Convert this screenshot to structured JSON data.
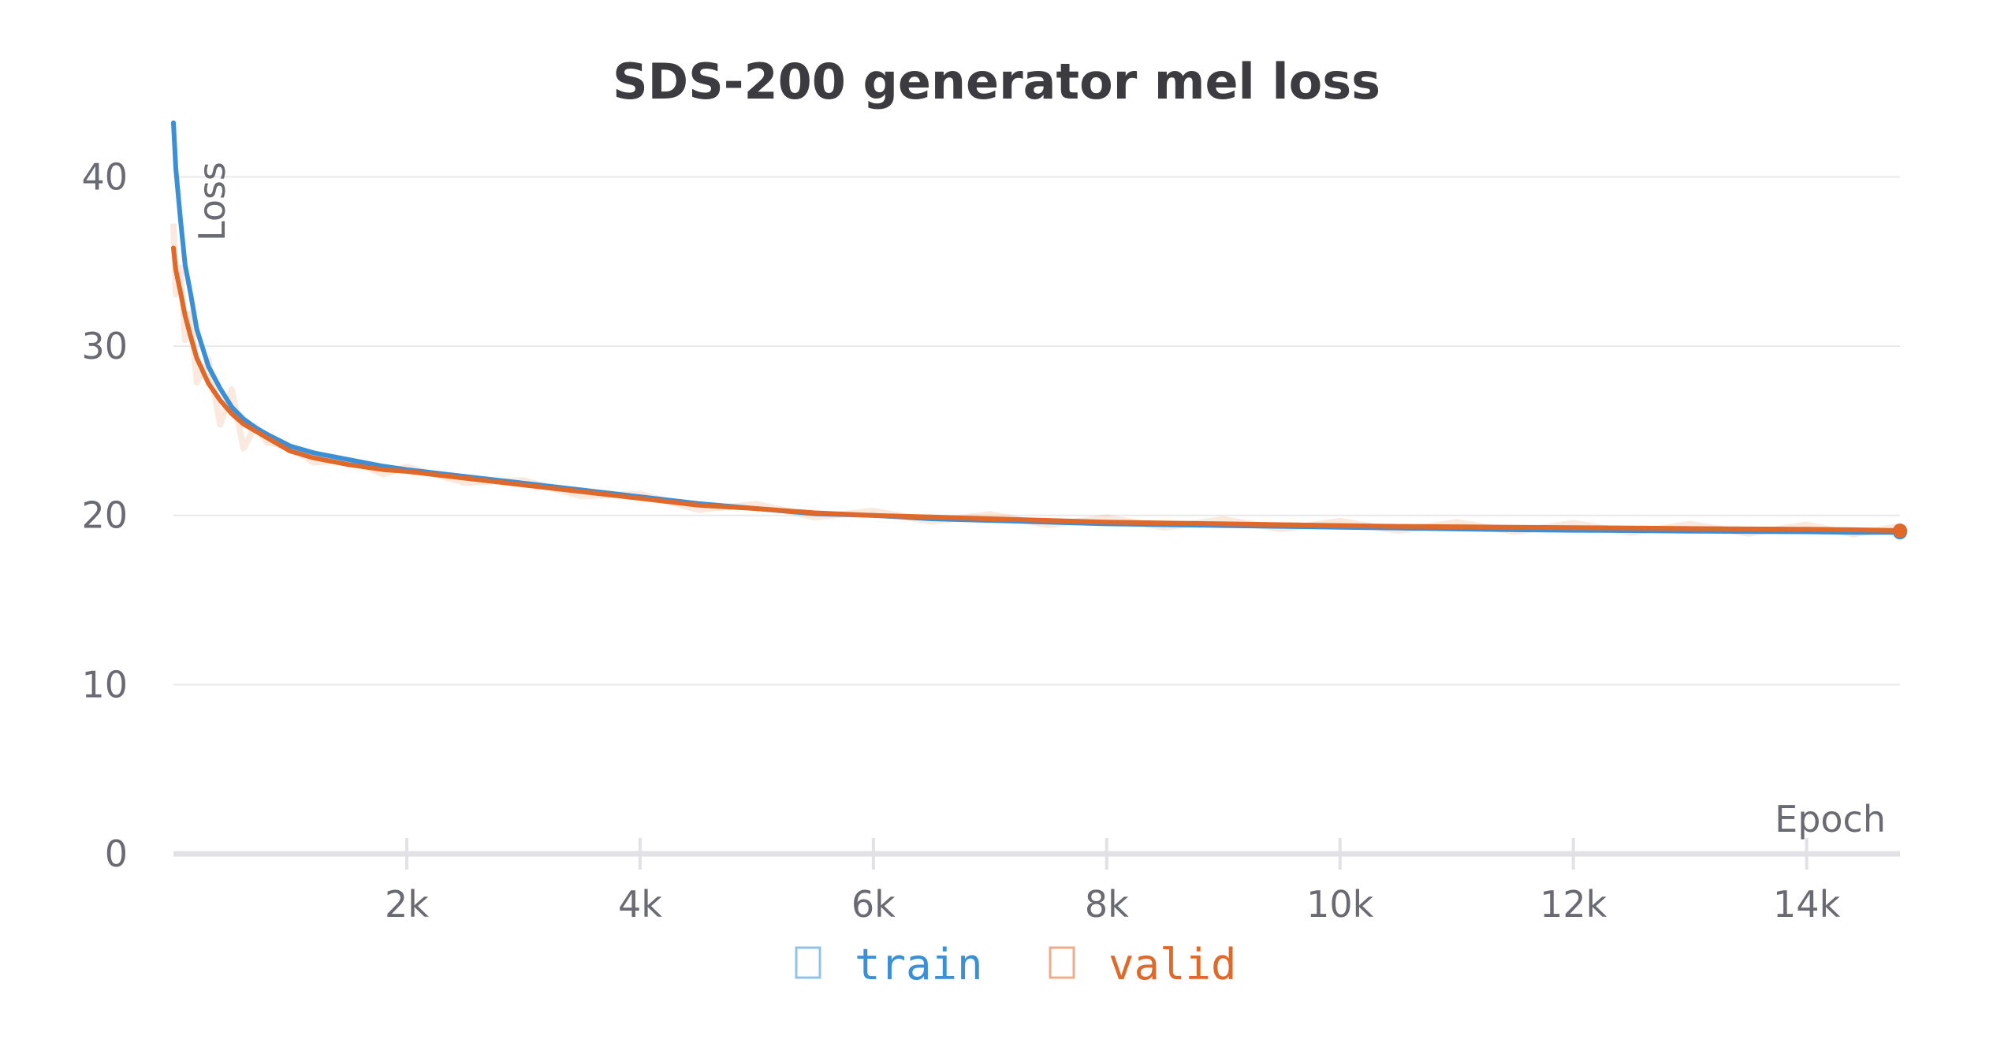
{
  "chart_data": {
    "type": "line",
    "title": "SDS-200 generator mel loss",
    "xlabel": "Epoch",
    "ylabel": "Loss",
    "xlim": [
      0,
      14800
    ],
    "ylim": [
      0,
      43
    ],
    "x_ticks": [
      2000,
      4000,
      6000,
      8000,
      10000,
      12000,
      14000
    ],
    "x_tick_labels": [
      "2k",
      "4k",
      "6k",
      "8k",
      "10k",
      "12k",
      "14k"
    ],
    "y_ticks": [
      0,
      10,
      20,
      30,
      40
    ],
    "y_tick_labels": [
      "0",
      "10",
      "20",
      "30",
      "40"
    ],
    "grid": "horizontal",
    "legend_position": "bottom",
    "series": [
      {
        "name": "train",
        "color": "#3b8fd6",
        "x": [
          0,
          20,
          60,
          100,
          150,
          200,
          300,
          400,
          500,
          600,
          700,
          800,
          1000,
          1200,
          1500,
          1800,
          2000,
          2500,
          3000,
          3500,
          4000,
          4500,
          5000,
          5500,
          6000,
          6500,
          7000,
          7500,
          8000,
          8500,
          9000,
          9500,
          10000,
          10500,
          11000,
          11500,
          12000,
          12500,
          13000,
          13500,
          14000,
          14400,
          14800
        ],
        "y": [
          43.2,
          40.5,
          37.5,
          34.8,
          33.0,
          31.0,
          28.8,
          27.5,
          26.4,
          25.7,
          25.2,
          24.8,
          24.1,
          23.7,
          23.3,
          22.9,
          22.7,
          22.3,
          21.9,
          21.5,
          21.1,
          20.7,
          20.4,
          20.1,
          20.0,
          19.8,
          19.7,
          19.6,
          19.5,
          19.45,
          19.4,
          19.35,
          19.3,
          19.25,
          19.2,
          19.15,
          19.12,
          19.1,
          19.07,
          19.05,
          19.03,
          19.0,
          19.0
        ]
      },
      {
        "name": "valid",
        "color": "#e0692a",
        "x": [
          0,
          20,
          60,
          100,
          150,
          200,
          300,
          400,
          500,
          600,
          700,
          800,
          1000,
          1200,
          1500,
          1800,
          2000,
          2500,
          3000,
          3500,
          4000,
          4500,
          5000,
          5500,
          6000,
          6500,
          7000,
          7500,
          8000,
          8500,
          9000,
          9500,
          10000,
          10500,
          11000,
          11500,
          12000,
          12500,
          13000,
          13500,
          14000,
          14400,
          14800
        ],
        "y": [
          35.8,
          34.5,
          33.2,
          31.8,
          30.5,
          29.3,
          27.8,
          26.8,
          26.0,
          25.4,
          25.0,
          24.6,
          23.8,
          23.4,
          23.0,
          22.7,
          22.6,
          22.2,
          21.8,
          21.4,
          21.0,
          20.6,
          20.4,
          20.15,
          20.0,
          19.9,
          19.8,
          19.7,
          19.6,
          19.55,
          19.5,
          19.45,
          19.4,
          19.35,
          19.33,
          19.3,
          19.28,
          19.25,
          19.22,
          19.2,
          19.18,
          19.15,
          19.1
        ]
      }
    ]
  }
}
